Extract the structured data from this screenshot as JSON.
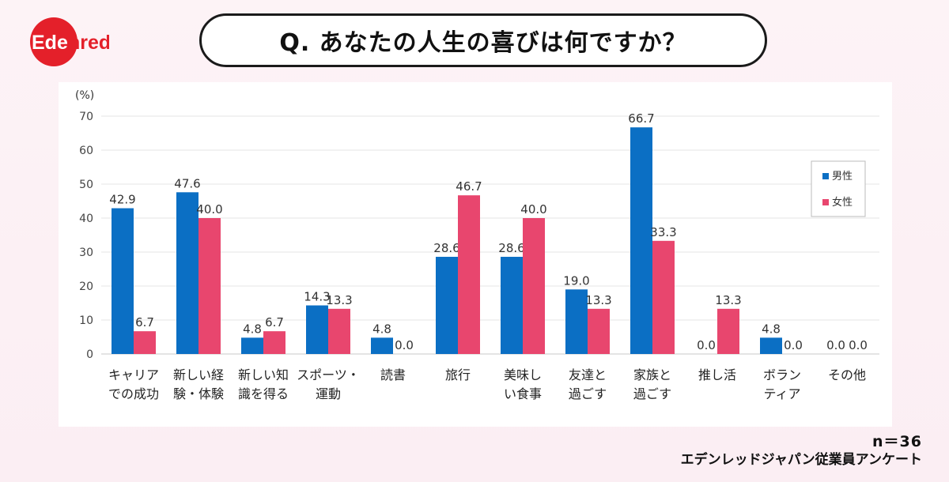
{
  "brand": {
    "logo_text": "Edenred",
    "logo_color": "#e4202a"
  },
  "question": "Q. あなたの人生の喜びは何ですか？",
  "footer": {
    "n": "n＝36",
    "source": "エデンレッドジャパン従業員アンケート"
  },
  "chart_data": {
    "type": "bar",
    "unit_label": "(%)",
    "ylim": [
      0,
      70
    ],
    "yticks": [
      0,
      10,
      20,
      30,
      40,
      50,
      60,
      70
    ],
    "grid": true,
    "legend_position": "right",
    "categories": [
      [
        "キャリア",
        "での成功"
      ],
      [
        "新しい経",
        "験・体験"
      ],
      [
        "新しい知",
        "識を得る"
      ],
      [
        "スポーツ・",
        "運動"
      ],
      [
        "読書"
      ],
      [
        "旅行"
      ],
      [
        "美味し",
        "い食事"
      ],
      [
        "友達と",
        "過ごす"
      ],
      [
        "家族と",
        "過ごす"
      ],
      [
        "推し活"
      ],
      [
        "ボラン",
        "ティア"
      ],
      [
        "その他"
      ]
    ],
    "series": [
      {
        "name": "男性",
        "color": "#0b6fc4",
        "values": [
          42.9,
          47.6,
          4.8,
          14.3,
          4.8,
          28.6,
          28.6,
          19.0,
          66.7,
          0.0,
          4.8,
          0.0
        ]
      },
      {
        "name": "女性",
        "color": "#e8466e",
        "values": [
          6.7,
          40.0,
          6.7,
          13.3,
          0.0,
          46.7,
          40.0,
          13.3,
          33.3,
          13.3,
          0.0,
          0.0
        ]
      }
    ]
  }
}
